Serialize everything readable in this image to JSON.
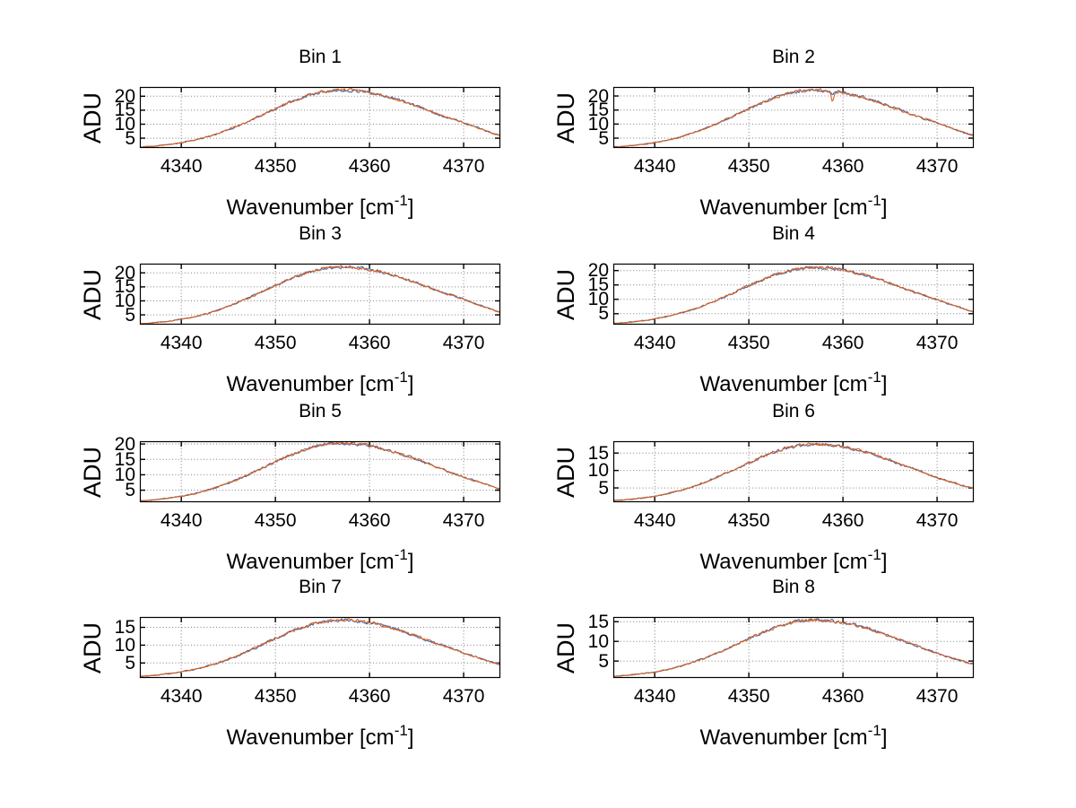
{
  "figure": {
    "background": "#ffffff"
  },
  "shared": {
    "ylabel": "ADU",
    "xlabel_main": "Wavenumber [cm",
    "xlabel_exponent": "-1",
    "xlabel_close": "]",
    "xticks": [
      4340,
      4350,
      4360,
      4370
    ],
    "xlim": [
      4335.6,
      4373.9
    ],
    "trace_colors": [
      "#4166b0",
      "#d9601e"
    ],
    "colors": {
      "axis": "#000000",
      "grid": "#828282",
      "text": "#000000",
      "line_under": "#4166b0",
      "line_over": "#d9601e",
      "background": "#ffffff"
    }
  },
  "chart_data": [
    {
      "type": "line",
      "title": "Bin 1",
      "xlabel": "Wavenumber [cm-1]",
      "ylabel": "ADU",
      "x_step": 2,
      "x": [
        4336,
        4338,
        4340,
        4342,
        4344,
        4346,
        4348,
        4350,
        4352,
        4354,
        4356,
        4358,
        4360,
        4362,
        4364,
        4366,
        4368,
        4370,
        4372,
        4374
      ],
      "values": [
        1.9,
        2.5,
        3.4,
        4.8,
        6.8,
        9.4,
        12.4,
        15.5,
        18.5,
        20.8,
        22.0,
        22.1,
        21.3,
        19.7,
        17.6,
        15.2,
        12.7,
        10.6,
        8.1,
        5.9
      ],
      "yticks": [
        5,
        10,
        15,
        20
      ],
      "ylim": [
        1.5,
        23.3
      ],
      "xticks": [
        4340,
        4350,
        4360,
        4370
      ],
      "xlim": [
        4335.6,
        4373.9
      ],
      "grid": "dotted",
      "peak": {
        "x": 4357.4,
        "y": 22.1
      }
    },
    {
      "type": "line",
      "title": "Bin 2",
      "xlabel": "Wavenumber [cm-1]",
      "ylabel": "ADU",
      "x_step": 2,
      "x": [
        4336,
        4338,
        4340,
        4342,
        4344,
        4346,
        4348,
        4350,
        4352,
        4354,
        4356,
        4358,
        4360,
        4362,
        4364,
        4366,
        4368,
        4370,
        4372,
        4374
      ],
      "values": [
        1.9,
        2.5,
        3.4,
        4.8,
        6.8,
        9.3,
        12.3,
        15.4,
        18.4,
        20.7,
        21.9,
        22.0,
        21.2,
        19.6,
        17.5,
        15.1,
        12.6,
        10.5,
        8.0,
        5.8
      ],
      "yticks": [
        5,
        10,
        15,
        20
      ],
      "ylim": [
        1.5,
        23.2
      ],
      "xticks": [
        4340,
        4350,
        4360,
        4370
      ],
      "xlim": [
        4335.6,
        4373.9
      ],
      "grid": "dotted",
      "peak": {
        "x": 4357.3,
        "y": 22.0
      },
      "artifact_dip": {
        "x": 4358.9,
        "depth": 3.3
      }
    },
    {
      "type": "line",
      "title": "Bin 3",
      "xlabel": "Wavenumber [cm-1]",
      "ylabel": "ADU",
      "x_step": 2,
      "x": [
        4336,
        4338,
        4340,
        4342,
        4344,
        4346,
        4348,
        4350,
        4352,
        4354,
        4356,
        4358,
        4360,
        4362,
        4364,
        4366,
        4368,
        4370,
        4372,
        4374
      ],
      "values": [
        1.9,
        2.5,
        3.4,
        4.8,
        6.8,
        9.4,
        12.4,
        15.5,
        18.4,
        20.7,
        21.9,
        22.0,
        21.2,
        19.7,
        17.6,
        15.2,
        12.7,
        10.6,
        8.1,
        5.9
      ],
      "yticks": [
        5,
        10,
        15,
        20
      ],
      "ylim": [
        1.5,
        23.3
      ],
      "xticks": [
        4340,
        4350,
        4360,
        4370
      ],
      "xlim": [
        4335.6,
        4373.9
      ],
      "grid": "dotted",
      "peak": {
        "x": 4357.5,
        "y": 22.0
      }
    },
    {
      "type": "line",
      "title": "Bin 4",
      "xlabel": "Wavenumber [cm-1]",
      "ylabel": "ADU",
      "x_step": 2,
      "x": [
        4336,
        4338,
        4340,
        4342,
        4344,
        4346,
        4348,
        4350,
        4352,
        4354,
        4356,
        4358,
        4360,
        4362,
        4364,
        4366,
        4368,
        4370,
        4372,
        4374
      ],
      "values": [
        1.7,
        2.3,
        3.2,
        4.6,
        6.4,
        8.9,
        11.7,
        14.7,
        17.6,
        19.7,
        20.9,
        21.0,
        20.2,
        18.8,
        16.8,
        14.4,
        12.0,
        9.9,
        7.6,
        5.6
      ],
      "yticks": [
        5,
        10,
        15,
        20
      ],
      "ylim": [
        1.2,
        22.4
      ],
      "xticks": [
        4340,
        4350,
        4360,
        4370
      ],
      "xlim": [
        4335.6,
        4373.9
      ],
      "grid": "dotted",
      "peak": {
        "x": 4357.2,
        "y": 21.0
      }
    },
    {
      "type": "line",
      "title": "Bin 5",
      "xlabel": "Wavenumber [cm-1]",
      "ylabel": "ADU",
      "x_step": 2,
      "x": [
        4336,
        4338,
        4340,
        4342,
        4344,
        4346,
        4348,
        4350,
        4352,
        4354,
        4356,
        4358,
        4360,
        4362,
        4364,
        4366,
        4368,
        4370,
        4372,
        4374
      ],
      "values": [
        1.6,
        2.2,
        3.0,
        4.3,
        6.2,
        8.5,
        11.3,
        14.2,
        16.9,
        19.0,
        20.2,
        20.2,
        19.5,
        18.0,
        16.1,
        13.9,
        11.5,
        9.3,
        7.3,
        5.4
      ],
      "yticks": [
        5,
        10,
        15,
        20
      ],
      "ylim": [
        1.1,
        20.9
      ],
      "xticks": [
        4340,
        4350,
        4360,
        4370
      ],
      "xlim": [
        4335.6,
        4373.9
      ],
      "grid": "dotted",
      "peak": {
        "x": 4357.0,
        "y": 20.2
      }
    },
    {
      "type": "line",
      "title": "Bin 6",
      "xlabel": "Wavenumber [cm-1]",
      "ylabel": "ADU",
      "x_step": 2,
      "x": [
        4336,
        4338,
        4340,
        4342,
        4344,
        4346,
        4348,
        4350,
        4352,
        4354,
        4356,
        4358,
        4360,
        4362,
        4364,
        4366,
        4368,
        4370,
        4372,
        4374
      ],
      "values": [
        1.4,
        1.9,
        2.6,
        3.8,
        5.3,
        7.4,
        9.7,
        12.2,
        14.6,
        16.4,
        17.4,
        17.4,
        16.8,
        15.6,
        13.9,
        12.0,
        10.0,
        8.0,
        6.3,
        4.8
      ],
      "yticks": [
        5,
        10,
        15
      ],
      "ylim": [
        0.9,
        18.4
      ],
      "xticks": [
        4340,
        4350,
        4360,
        4370
      ],
      "xlim": [
        4335.6,
        4373.9
      ],
      "grid": "dotted",
      "peak": {
        "x": 4356.8,
        "y": 17.4
      }
    },
    {
      "type": "line",
      "title": "Bin 7",
      "xlabel": "Wavenumber [cm-1]",
      "ylabel": "ADU",
      "x_step": 2,
      "x": [
        4336,
        4338,
        4340,
        4342,
        4344,
        4346,
        4348,
        4350,
        4352,
        4354,
        4356,
        4358,
        4360,
        4362,
        4364,
        4366,
        4368,
        4370,
        4372,
        4374
      ],
      "values": [
        1.3,
        1.8,
        2.5,
        3.6,
        5.1,
        7.1,
        9.4,
        11.9,
        14.1,
        15.9,
        16.9,
        16.9,
        16.3,
        15.1,
        13.5,
        11.6,
        9.7,
        7.8,
        6.1,
        4.6
      ],
      "yticks": [
        5,
        10,
        15
      ],
      "ylim": [
        0.8,
        17.9
      ],
      "xticks": [
        4340,
        4350,
        4360,
        4370
      ],
      "xlim": [
        4335.6,
        4373.9
      ],
      "grid": "dotted",
      "peak": {
        "x": 4356.6,
        "y": 16.9
      }
    },
    {
      "type": "line",
      "title": "Bin 8",
      "xlabel": "Wavenumber [cm-1]",
      "ylabel": "ADU",
      "x_step": 2,
      "x": [
        4336,
        4338,
        4340,
        4342,
        4344,
        4346,
        4348,
        4350,
        4352,
        4354,
        4356,
        4358,
        4360,
        4362,
        4364,
        4366,
        4368,
        4370,
        4372,
        4374
      ],
      "values": [
        1.2,
        1.6,
        2.2,
        3.2,
        4.6,
        6.4,
        8.5,
        10.7,
        12.8,
        14.4,
        15.3,
        15.3,
        14.8,
        13.7,
        12.2,
        10.5,
        8.7,
        7.0,
        5.5,
        4.2
      ],
      "yticks": [
        5,
        10,
        15
      ],
      "ylim": [
        0.7,
        16.2
      ],
      "xticks": [
        4340,
        4350,
        4360,
        4370
      ],
      "xlim": [
        4335.6,
        4373.9
      ],
      "grid": "dotted",
      "peak": {
        "x": 4357.0,
        "y": 15.3
      }
    }
  ]
}
